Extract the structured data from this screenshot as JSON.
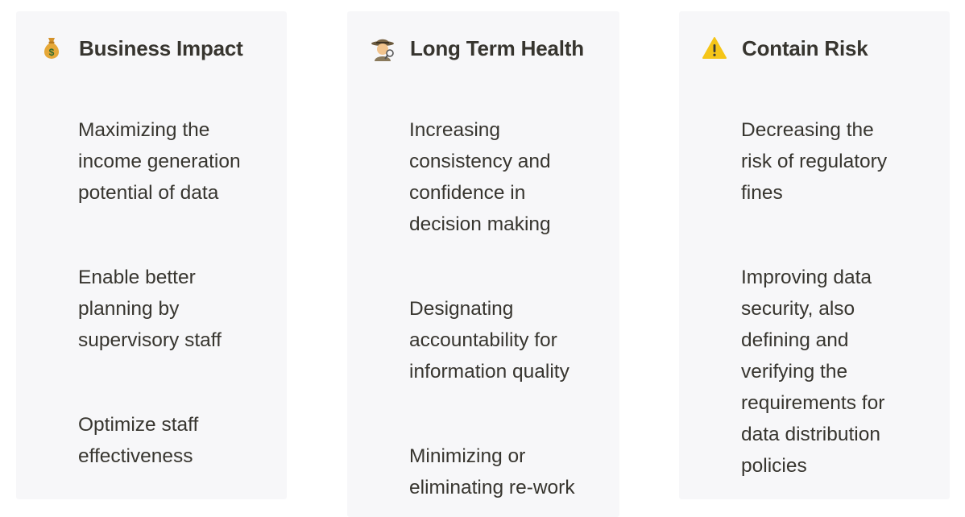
{
  "cards": [
    {
      "icon": "money-bag-icon",
      "title": "Business Impact",
      "items": [
        [
          "Maximizing the",
          "income generation",
          "potential of data"
        ],
        [
          "Enable better",
          "planning by",
          "supervisory staff"
        ],
        [
          "Optimize staff",
          "effectiveness"
        ]
      ]
    },
    {
      "icon": "detective-icon",
      "title": "Long Term Health",
      "items": [
        [
          "Increasing",
          "consistency and",
          "confidence in",
          "decision making"
        ],
        [
          "Designating",
          "accountability for",
          "information quality"
        ],
        [
          "Minimizing or",
          "eliminating re-work"
        ]
      ]
    },
    {
      "icon": "warning-icon",
      "title": "Contain Risk",
      "items": [
        [
          "Decreasing the",
          "risk of regulatory",
          "fines"
        ],
        [
          "Improving data",
          "security, also",
          "defining and",
          "verifying the",
          "requirements for",
          "data distribution",
          "policies"
        ]
      ]
    }
  ],
  "colors": {
    "card_bg": "#f7f7f9",
    "text": "#37352f",
    "warning": "#f5c518",
    "money_bag": "#e6a838"
  }
}
